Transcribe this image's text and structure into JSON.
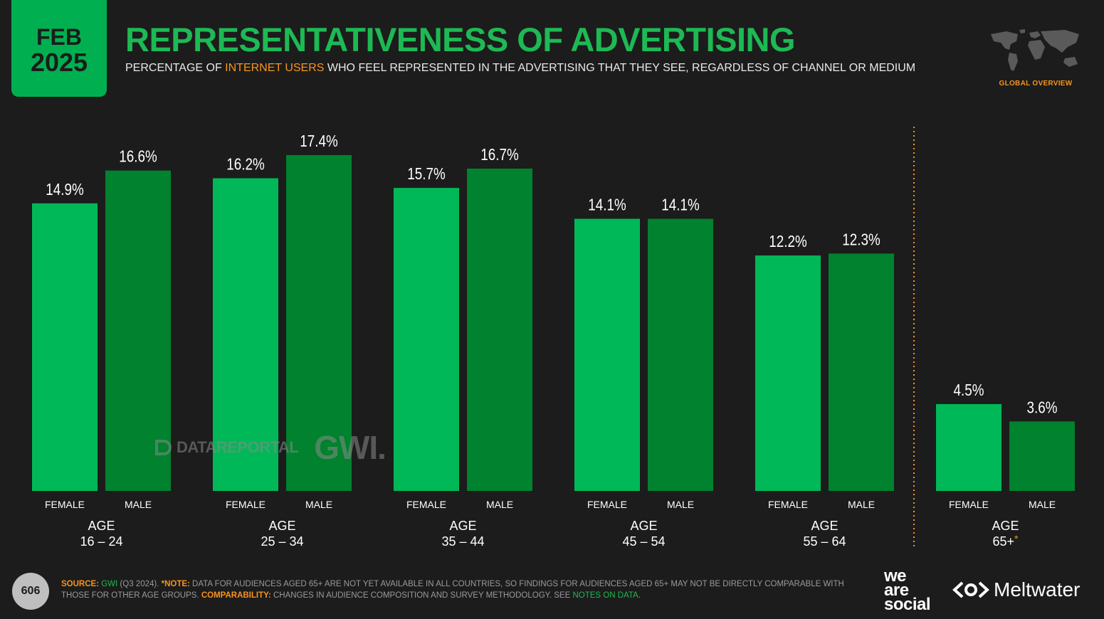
{
  "badge": {
    "month": "FEB",
    "year": "2025"
  },
  "header": {
    "title": "REPRESENTATIVENESS OF ADVERTISING",
    "subtitle_before": "PERCENTAGE OF ",
    "subtitle_highlight": "INTERNET USERS",
    "subtitle_after": " WHO FEEL REPRESENTED IN THE ADVERTISING THAT THEY SEE, REGARDLESS OF CHANNEL OR MEDIUM",
    "region_label": "GLOBAL OVERVIEW"
  },
  "watermark": {
    "datareportal": "DATAREPORTAL",
    "gwi": "GWI."
  },
  "chart_data": {
    "type": "bar",
    "title": "REPRESENTATIVENESS OF ADVERTISING",
    "categories": [
      "16 – 24",
      "25 – 34",
      "35 – 44",
      "45 – 54",
      "55 – 64",
      "65+"
    ],
    "category_prefix": "AGE",
    "series": [
      {
        "name": "FEMALE",
        "values": [
          14.9,
          16.2,
          15.7,
          14.1,
          12.2,
          4.5
        ]
      },
      {
        "name": "MALE",
        "values": [
          16.6,
          17.4,
          16.7,
          14.1,
          12.3,
          3.6
        ]
      }
    ],
    "value_suffix": "%",
    "ylim": [
      0,
      17.4
    ],
    "grid": false,
    "separator_before_category": 5,
    "asterisk_category": 5,
    "colors": {
      "female": "#00b857",
      "male": "#00822e",
      "separator": "#f7941d",
      "asterisk": "#f7941d"
    }
  },
  "footer": {
    "page_number": "606",
    "source_label": "SOURCE:",
    "source_value": " GWI",
    "source_rest": " (Q3 2024). ",
    "note_label": "*NOTE:",
    "note_text": " DATA FOR AUDIENCES AGED 65+ ARE NOT YET AVAILABLE IN ALL COUNTRIES, SO FINDINGS FOR AUDIENCES AGED 65+ MAY NOT BE DIRECTLY COMPARABLE WITH THOSE FOR OTHER AGE GROUPS. ",
    "comparability_label": "COMPARABILITY:",
    "comparability_text": " CHANGES IN AUDIENCE COMPOSITION AND SURVEY METHODOLOGY. SEE ",
    "notes_link": "NOTES ON DATA",
    "period": ".",
    "brand1_line1": "we",
    "brand1_line2": "are",
    "brand1_line3": "social",
    "brand2": "Meltwater"
  }
}
